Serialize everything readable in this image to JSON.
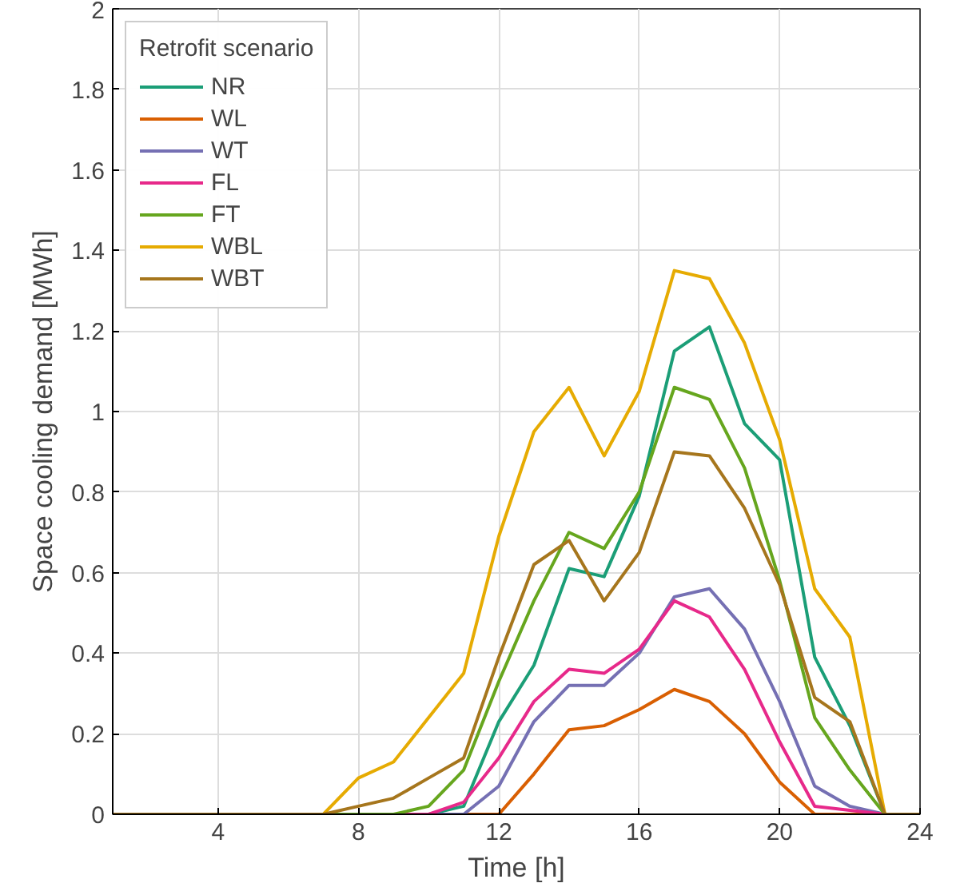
{
  "chart_data": {
    "type": "line",
    "xlabel": "Time [h]",
    "ylabel": "Space cooling demand [MWh]",
    "legend_title": "Retrofit scenario",
    "legend": "top left",
    "grid": true,
    "x": [
      1,
      2,
      3,
      4,
      5,
      6,
      7,
      8,
      9,
      10,
      11,
      12,
      13,
      14,
      15,
      16,
      17,
      18,
      19,
      20,
      21,
      22,
      23,
      24
    ],
    "xlim": [
      1,
      24
    ],
    "xticks": [
      4,
      8,
      12,
      16,
      20,
      24
    ],
    "ylim": [
      0,
      2
    ],
    "yticks": [
      0,
      0.2,
      0.4,
      0.6,
      0.8,
      1,
      1.2,
      1.4,
      1.6,
      1.8,
      2
    ],
    "series": [
      {
        "name": "NR",
        "color": "#1b9e77",
        "values": [
          null,
          null,
          null,
          null,
          null,
          null,
          null,
          null,
          null,
          0,
          0.02,
          0.23,
          0.37,
          0.61,
          0.59,
          0.79,
          1.15,
          1.21,
          0.97,
          0.88,
          0.39,
          0.22,
          0,
          null
        ]
      },
      {
        "name": "WL",
        "color": "#d95f02",
        "values": [
          null,
          null,
          null,
          null,
          null,
          null,
          null,
          null,
          null,
          null,
          0,
          0,
          0.1,
          0.21,
          0.22,
          0.26,
          0.31,
          0.28,
          0.2,
          0.08,
          0,
          0,
          0,
          null
        ]
      },
      {
        "name": "WT",
        "color": "#7570b3",
        "values": [
          null,
          null,
          null,
          null,
          null,
          null,
          null,
          null,
          null,
          0,
          0,
          0.07,
          0.23,
          0.32,
          0.32,
          0.4,
          0.54,
          0.56,
          0.46,
          0.28,
          0.07,
          0.02,
          0,
          null
        ]
      },
      {
        "name": "FL",
        "color": "#e7298a",
        "values": [
          null,
          null,
          null,
          null,
          null,
          null,
          null,
          null,
          0,
          0,
          0.03,
          0.14,
          0.28,
          0.36,
          0.35,
          0.41,
          0.53,
          0.49,
          0.36,
          0.18,
          0.02,
          0.01,
          0,
          null
        ]
      },
      {
        "name": "FT",
        "color": "#66a61e",
        "values": [
          null,
          null,
          null,
          null,
          null,
          null,
          0,
          0,
          0,
          0.02,
          0.11,
          0.33,
          0.53,
          0.7,
          0.66,
          0.8,
          1.06,
          1.03,
          0.86,
          0.58,
          0.24,
          0.11,
          0,
          null
        ]
      },
      {
        "name": "WBL",
        "color": "#e6ab02",
        "values": [
          null,
          null,
          null,
          null,
          null,
          null,
          0,
          0.09,
          0.13,
          0.24,
          0.35,
          0.69,
          0.95,
          1.06,
          0.89,
          1.05,
          1.35,
          1.33,
          1.17,
          0.93,
          0.56,
          0.44,
          0,
          null
        ]
      },
      {
        "name": "WBT",
        "color": "#a6761d",
        "values": [
          0,
          0,
          0,
          0,
          0,
          0,
          0,
          0.02,
          0.04,
          0.09,
          0.14,
          0.39,
          0.62,
          0.68,
          0.53,
          0.65,
          0.9,
          0.89,
          0.76,
          0.57,
          0.29,
          0.23,
          0,
          0
        ]
      }
    ]
  }
}
